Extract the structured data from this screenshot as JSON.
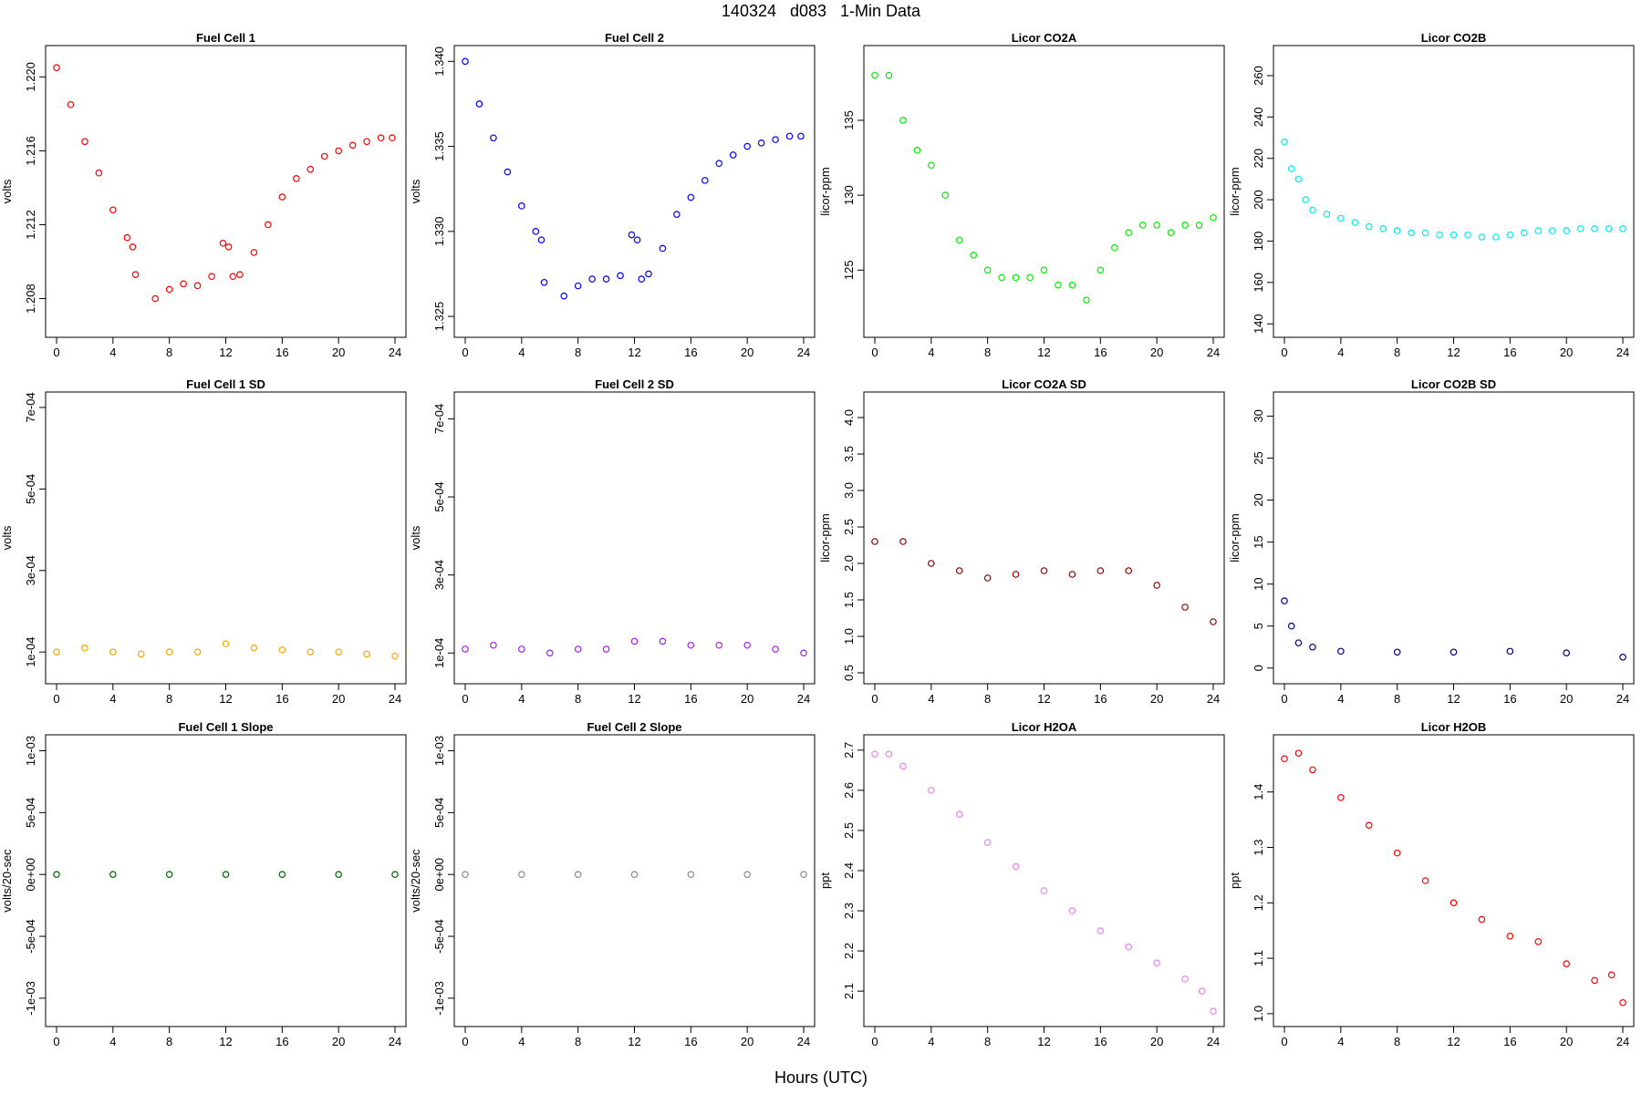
{
  "page_title": "140324   d083   1-Min Data",
  "x_axis_title": "Hours (UTC)",
  "chart_data": [
    {
      "id": "fc1",
      "type": "scatter",
      "title": "Fuel Cell 1",
      "ylabel": "volts",
      "color": "#ff0000",
      "xlim": [
        0,
        24
      ],
      "xticks": [
        0,
        4,
        8,
        12,
        16,
        20,
        24
      ],
      "xtick_labels": [
        "0",
        "4",
        "8",
        "12",
        "16",
        "20",
        "24"
      ],
      "ylim": [
        1.2063,
        1.2213
      ],
      "yticks": [
        1.208,
        1.212,
        1.216,
        1.22
      ],
      "ytick_labels": [
        "1.208",
        "1.212",
        "1.216",
        "1.220"
      ],
      "x": [
        0,
        1,
        2,
        3,
        4,
        5,
        5.4,
        5.6,
        7,
        8,
        9,
        10,
        11,
        11.8,
        12.2,
        12.5,
        13,
        14,
        15,
        16,
        17,
        18,
        19,
        20,
        21,
        22,
        23,
        23.8
      ],
      "values": [
        1.2205,
        1.2185,
        1.2165,
        1.2148,
        1.2128,
        1.2113,
        1.2108,
        1.2093,
        1.208,
        1.2085,
        1.2088,
        1.2087,
        1.2092,
        1.211,
        1.2108,
        1.2092,
        1.2093,
        1.2105,
        1.212,
        1.2135,
        1.2145,
        1.215,
        1.2157,
        1.216,
        1.2163,
        1.2165,
        1.2167,
        1.2167
      ]
    },
    {
      "id": "fc2",
      "type": "scatter",
      "title": "Fuel Cell 2",
      "ylabel": "volts",
      "color": "#0000ff",
      "xlim": [
        0,
        24
      ],
      "xticks": [
        0,
        4,
        8,
        12,
        16,
        20,
        24
      ],
      "xtick_labels": [
        "0",
        "4",
        "8",
        "12",
        "16",
        "20",
        "24"
      ],
      "ylim": [
        1.3242,
        1.3405
      ],
      "yticks": [
        1.325,
        1.33,
        1.335,
        1.34
      ],
      "ytick_labels": [
        "1.325",
        "1.330",
        "1.335",
        "1.340"
      ],
      "x": [
        0,
        1,
        2,
        3,
        4,
        5,
        5.4,
        5.6,
        7,
        8,
        9,
        10,
        11,
        11.8,
        12.2,
        12.5,
        13,
        14,
        15,
        16,
        17,
        18,
        19,
        20,
        21,
        22,
        23,
        23.8
      ],
      "values": [
        1.34,
        1.3375,
        1.3355,
        1.3335,
        1.3315,
        1.33,
        1.3295,
        1.327,
        1.3262,
        1.3268,
        1.3272,
        1.3272,
        1.3274,
        1.3298,
        1.3295,
        1.3272,
        1.3275,
        1.329,
        1.331,
        1.332,
        1.333,
        1.334,
        1.3345,
        1.335,
        1.3352,
        1.3354,
        1.3356,
        1.3356
      ]
    },
    {
      "id": "co2a",
      "type": "scatter",
      "title": "Licor CO2A",
      "ylabel": "licor-ppm",
      "color": "#00ee00",
      "xlim": [
        0,
        24
      ],
      "xticks": [
        0,
        4,
        8,
        12,
        16,
        20,
        24
      ],
      "xtick_labels": [
        "0",
        "4",
        "8",
        "12",
        "16",
        "20",
        "24"
      ],
      "ylim": [
        121,
        139.5
      ],
      "yticks": [
        125,
        130,
        135
      ],
      "ytick_labels": [
        "125",
        "130",
        "135"
      ],
      "x": [
        0,
        1,
        2,
        3,
        4,
        5,
        6,
        7,
        8,
        9,
        10,
        11,
        12,
        13,
        14,
        15,
        16,
        17,
        18,
        19,
        20,
        21,
        22,
        23,
        24
      ],
      "values": [
        138,
        138,
        135,
        133,
        132,
        130,
        127,
        126,
        125,
        124.5,
        124.5,
        124.5,
        125,
        124,
        124,
        123,
        125,
        126.5,
        127.5,
        128,
        128,
        127.5,
        128,
        128,
        128.5
      ]
    },
    {
      "id": "co2b",
      "type": "scatter",
      "title": "Licor CO2B",
      "ylabel": "licor-ppm",
      "color": "#00eeee",
      "xlim": [
        0,
        24
      ],
      "xticks": [
        0,
        4,
        8,
        12,
        16,
        20,
        24
      ],
      "xtick_labels": [
        "0",
        "4",
        "8",
        "12",
        "16",
        "20",
        "24"
      ],
      "ylim": [
        137,
        271
      ],
      "yticks": [
        140,
        160,
        180,
        200,
        220,
        240,
        260
      ],
      "ytick_labels": [
        "140",
        "160",
        "180",
        "200",
        "220",
        "240",
        "260"
      ],
      "x": [
        0,
        0.5,
        1,
        1.5,
        2,
        3,
        4,
        5,
        6,
        7,
        8,
        9,
        10,
        11,
        12,
        13,
        14,
        15,
        16,
        17,
        18,
        19,
        20,
        21,
        22,
        23,
        24
      ],
      "values": [
        228,
        215,
        210,
        200,
        195,
        193,
        191,
        189,
        187,
        186,
        185,
        184,
        184,
        183,
        183,
        183,
        182,
        182,
        183,
        184,
        185,
        185,
        185,
        186,
        186,
        186,
        186
      ]
    },
    {
      "id": "fc1sd",
      "type": "scatter",
      "title": "Fuel Cell 1 SD",
      "ylabel": "volts",
      "color": "#ffa500",
      "xlim": [
        0,
        24
      ],
      "xticks": [
        0,
        4,
        8,
        12,
        16,
        20,
        24
      ],
      "xtick_labels": [
        "0",
        "4",
        "8",
        "12",
        "16",
        "20",
        "24"
      ],
      "ylim": [
        4e-05,
        0.00072
      ],
      "yticks": [
        0.0001,
        0.0003,
        0.0005,
        0.0007
      ],
      "ytick_labels": [
        "1e-04",
        "3e-04",
        "5e-04",
        "7e-04"
      ],
      "x": [
        0,
        2,
        4,
        6,
        8,
        10,
        12,
        14,
        16,
        18,
        20,
        22,
        24
      ],
      "values": [
        0.0001,
        0.00011,
        0.0001,
        9.5e-05,
        0.0001,
        0.0001,
        0.00012,
        0.00011,
        0.000105,
        0.0001,
        0.0001,
        9.5e-05,
        9e-05
      ]
    },
    {
      "id": "fc2sd",
      "type": "scatter",
      "title": "Fuel Cell 2 SD",
      "ylabel": "volts",
      "color": "#a020f0",
      "xlim": [
        0,
        24
      ],
      "xticks": [
        0,
        4,
        8,
        12,
        16,
        20,
        24
      ],
      "xtick_labels": [
        "0",
        "4",
        "8",
        "12",
        "16",
        "20",
        "24"
      ],
      "ylim": [
        4e-05,
        0.00075
      ],
      "yticks": [
        0.0001,
        0.0003,
        0.0005,
        0.0007
      ],
      "ytick_labels": [
        "1e-04",
        "3e-04",
        "5e-04",
        "7e-04"
      ],
      "x": [
        0,
        2,
        4,
        6,
        8,
        10,
        12,
        14,
        16,
        18,
        20,
        22,
        24
      ],
      "values": [
        0.00011,
        0.00012,
        0.00011,
        0.0001,
        0.00011,
        0.00011,
        0.00013,
        0.00013,
        0.00012,
        0.00012,
        0.00012,
        0.00011,
        0.0001
      ]
    },
    {
      "id": "co2asd",
      "type": "scatter",
      "title": "Licor CO2A SD",
      "ylabel": "licor-ppm",
      "color": "#8b0000",
      "xlim": [
        0,
        24
      ],
      "xticks": [
        0,
        4,
        8,
        12,
        16,
        20,
        24
      ],
      "xtick_labels": [
        "0",
        "4",
        "8",
        "12",
        "16",
        "20",
        "24"
      ],
      "ylim": [
        0.45,
        4.25
      ],
      "yticks": [
        0.5,
        1,
        1.5,
        2,
        2.5,
        3,
        3.5,
        4
      ],
      "ytick_labels": [
        "0.5",
        "1.0",
        "1.5",
        "2.0",
        "2.5",
        "3.0",
        "3.5",
        "4.0"
      ],
      "x": [
        0,
        2,
        4,
        6,
        8,
        10,
        12,
        14,
        16,
        18,
        20,
        22,
        24
      ],
      "values": [
        2.3,
        2.3,
        2,
        1.9,
        1.8,
        1.85,
        1.9,
        1.85,
        1.9,
        1.9,
        1.7,
        1.4,
        1.2
      ]
    },
    {
      "id": "co2bsd",
      "type": "scatter",
      "title": "Licor CO2B SD",
      "ylabel": "licor-ppm",
      "color": "#000080",
      "xlim": [
        0,
        24
      ],
      "xticks": [
        0,
        4,
        8,
        12,
        16,
        20,
        24
      ],
      "xtick_labels": [
        "0",
        "4",
        "8",
        "12",
        "16",
        "20",
        "24"
      ],
      "ylim": [
        -1,
        32
      ],
      "yticks": [
        0,
        5,
        10,
        15,
        20,
        25,
        30
      ],
      "ytick_labels": [
        "0",
        "5",
        "10",
        "15",
        "20",
        "25",
        "30"
      ],
      "x": [
        0,
        0.5,
        1,
        2,
        4,
        8,
        12,
        16,
        20,
        24
      ],
      "values": [
        8,
        5,
        3,
        2.5,
        2,
        1.9,
        1.9,
        2,
        1.8,
        1.3
      ]
    },
    {
      "id": "fc1slope",
      "type": "scatter",
      "title": "Fuel Cell 1 Slope",
      "ylabel": "volts/20-sec",
      "color": "#006400",
      "xlim": [
        0,
        24
      ],
      "xticks": [
        0,
        4,
        8,
        12,
        16,
        20,
        24
      ],
      "xtick_labels": [
        "0",
        "4",
        "8",
        "12",
        "16",
        "20",
        "24"
      ],
      "ylim": [
        -0.00117,
        0.00107
      ],
      "yticks": [
        -0.001,
        -0.0005,
        0,
        0.0005,
        0.001
      ],
      "ytick_labels": [
        "-1e-03",
        "-5e-04",
        "0e+00",
        "5e-04",
        "1e-03"
      ],
      "x": [
        0,
        4,
        8,
        12,
        16,
        20,
        24
      ],
      "values": [
        0,
        0,
        0,
        0,
        0,
        0,
        0
      ]
    },
    {
      "id": "fc2slope",
      "type": "scatter",
      "title": "Fuel Cell 2 Slope",
      "ylabel": "volts/20-sec",
      "color": "#8c8c8c",
      "xlim": [
        0,
        24
      ],
      "xticks": [
        0,
        4,
        8,
        12,
        16,
        20,
        24
      ],
      "xtick_labels": [
        "0",
        "4",
        "8",
        "12",
        "16",
        "20",
        "24"
      ],
      "ylim": [
        -0.00117,
        0.00107
      ],
      "yticks": [
        -0.001,
        -0.0005,
        0,
        0.0005,
        0.001
      ],
      "ytick_labels": [
        "-1e-03",
        "-5e-04",
        "0e+00",
        "5e-04",
        "1e-03"
      ],
      "x": [
        0,
        4,
        8,
        12,
        16,
        20,
        24
      ],
      "values": [
        0,
        0,
        0,
        0,
        0,
        0,
        0
      ]
    },
    {
      "id": "h2oa",
      "type": "scatter",
      "title": "Licor H2OA",
      "ylabel": "ppt",
      "color": "#ee82ee",
      "xlim": [
        0,
        24
      ],
      "xticks": [
        0,
        4,
        8,
        12,
        16,
        20,
        24
      ],
      "xtick_labels": [
        "0",
        "4",
        "8",
        "12",
        "16",
        "20",
        "24"
      ],
      "ylim": [
        2.03,
        2.72
      ],
      "yticks": [
        2.1,
        2.2,
        2.3,
        2.4,
        2.5,
        2.6,
        2.7
      ],
      "ytick_labels": [
        "2.1",
        "2.2",
        "2.3",
        "2.4",
        "2.5",
        "2.6",
        "2.7"
      ],
      "x": [
        0,
        1,
        2,
        4,
        6,
        8,
        10,
        12,
        14,
        16,
        18,
        20,
        22,
        23.2,
        24
      ],
      "values": [
        2.69,
        2.69,
        2.66,
        2.6,
        2.54,
        2.47,
        2.41,
        2.35,
        2.3,
        2.25,
        2.21,
        2.17,
        2.13,
        2.1,
        2.05
      ]
    },
    {
      "id": "h2ob",
      "type": "scatter",
      "title": "Licor H2OB",
      "ylabel": "ppt",
      "color": "#ff0000",
      "xlim": [
        0,
        24
      ],
      "xticks": [
        0,
        4,
        8,
        12,
        16,
        20,
        24
      ],
      "xtick_labels": [
        "0",
        "4",
        "8",
        "12",
        "16",
        "20",
        "24"
      ],
      "ylim": [
        0.99,
        1.49
      ],
      "yticks": [
        1.0,
        1.1,
        1.2,
        1.3,
        1.4
      ],
      "ytick_labels": [
        "1.0",
        "1.1",
        "1.2",
        "1.3",
        "1.4"
      ],
      "x": [
        0,
        1,
        2,
        4,
        6,
        8,
        10,
        12,
        14,
        16,
        18,
        20,
        22,
        23.2,
        24
      ],
      "values": [
        1.46,
        1.47,
        1.44,
        1.39,
        1.34,
        1.29,
        1.24,
        1.2,
        1.17,
        1.14,
        1.13,
        1.09,
        1.06,
        1.07,
        1.02
      ]
    }
  ]
}
